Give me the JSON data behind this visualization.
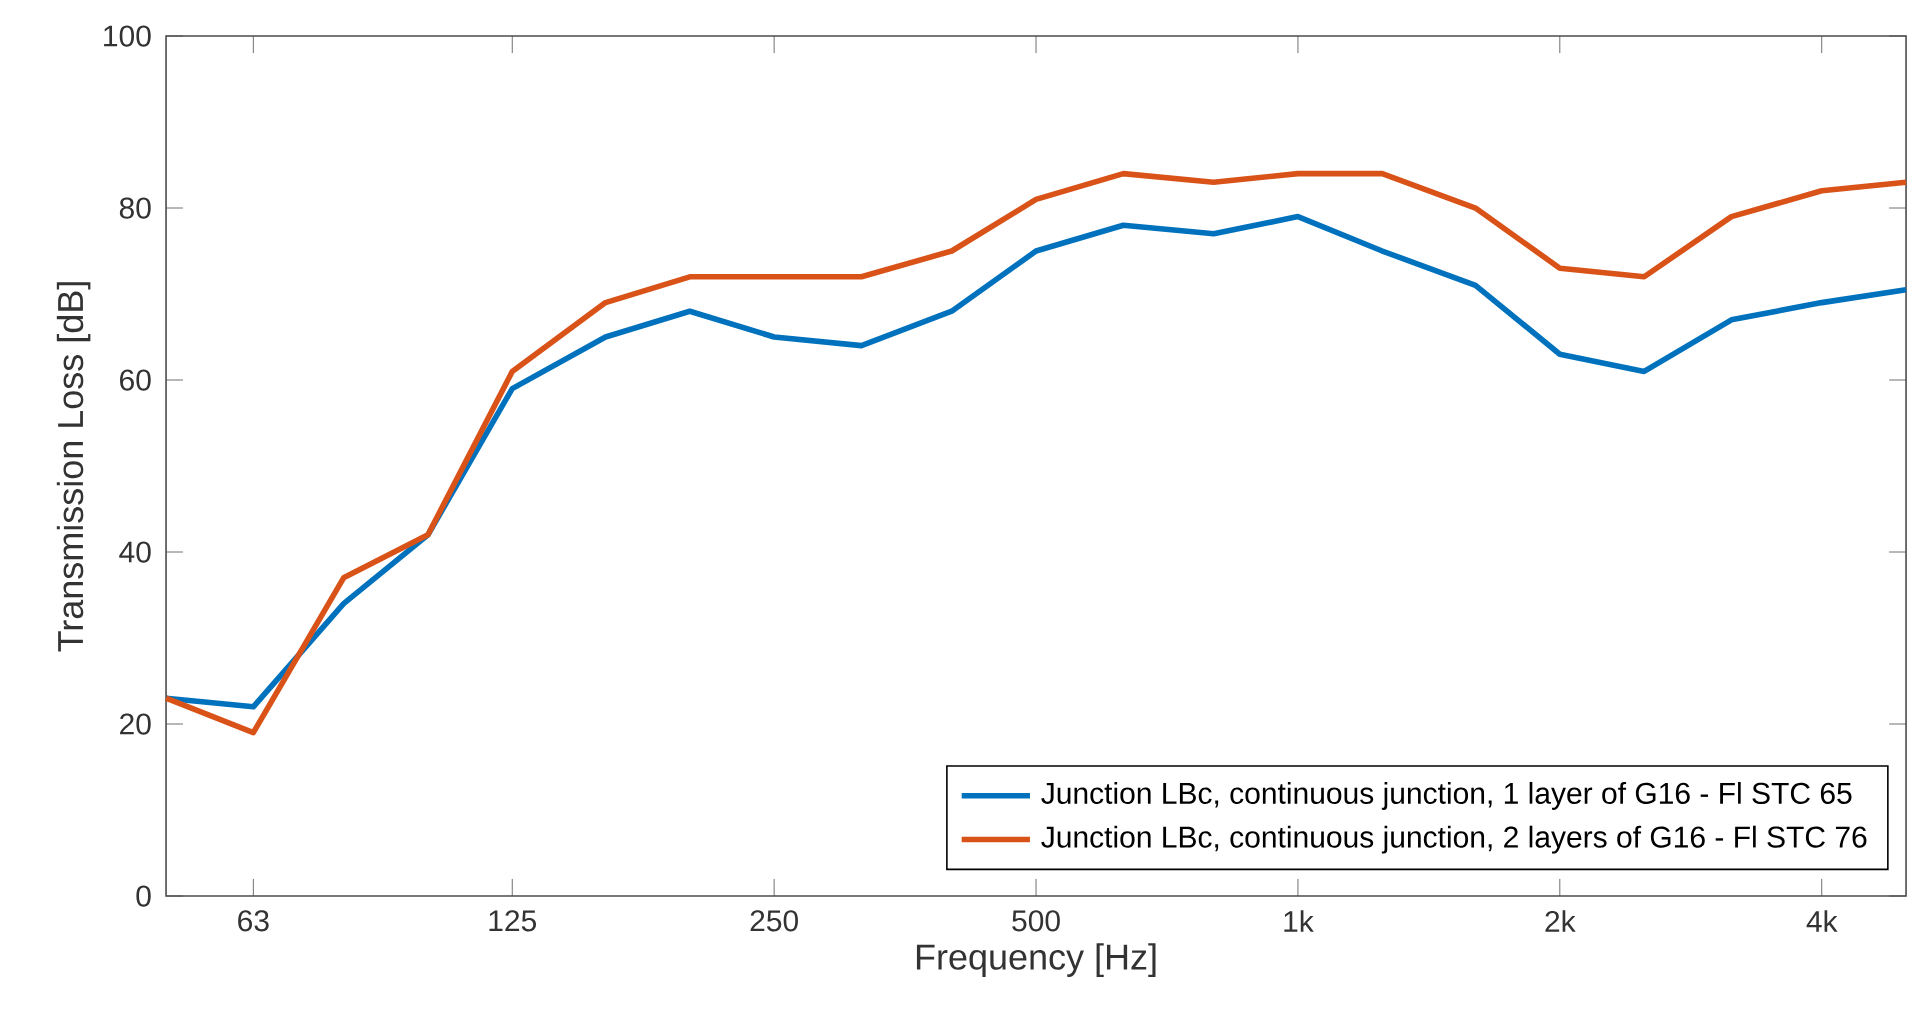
{
  "chart_data": {
    "type": "line",
    "xlabel": "Frequency [Hz]",
    "ylabel": "Transmission Loss [dB]",
    "x": [
      50,
      63,
      80,
      100,
      125,
      160,
      200,
      250,
      315,
      400,
      500,
      630,
      800,
      1000,
      1250,
      1600,
      2000,
      2500,
      3150,
      4000,
      5000
    ],
    "series": [
      {
        "name": "Junction LBc, continuous junction, 1 layer of G16 - Fl STC 65",
        "color": "#0072bd",
        "values": [
          23,
          22,
          34,
          42,
          59,
          65,
          68,
          65,
          64,
          68,
          75,
          78,
          77,
          79,
          75,
          71,
          63,
          61,
          67,
          69,
          70.5
        ]
      },
      {
        "name": "Junction LBc, continuous junction, 2 layers of G16 - Fl STC 76",
        "color": "#d95319",
        "values": [
          23,
          19,
          37,
          42,
          61,
          69,
          72,
          72,
          72,
          75,
          81,
          84,
          83,
          84,
          84,
          80,
          73,
          72,
          79,
          82,
          83
        ]
      }
    ],
    "log": "x",
    "xlim": [
      50,
      5000
    ],
    "xticks": [
      63,
      125,
      250,
      500,
      {
        "value": 1000,
        "label": "1k"
      },
      {
        "value": 2000,
        "label": "2k"
      },
      {
        "value": 4000,
        "label": "4k"
      }
    ],
    "ylim": [
      0,
      100
    ],
    "yticks": [
      0,
      20,
      40,
      60,
      80,
      100
    ],
    "grid": false,
    "legend": "bottom right",
    "marker": "none",
    "line_style": "solid"
  }
}
